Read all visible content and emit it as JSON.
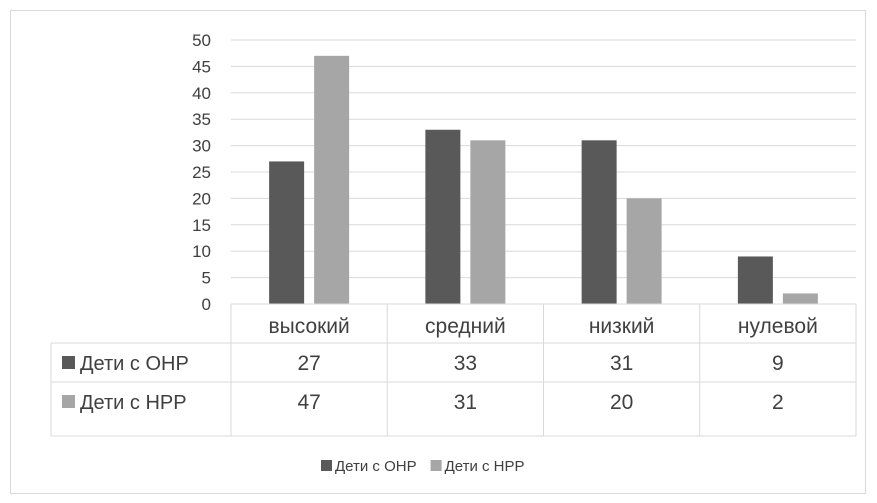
{
  "chart_data": {
    "type": "bar",
    "categories": [
      "высокий",
      "средний",
      "низкий",
      "нулевой"
    ],
    "series": [
      {
        "name": "Дети с ОНР",
        "values": [
          27,
          33,
          31,
          9
        ],
        "color": "#595959"
      },
      {
        "name": "Дети с НРР",
        "values": [
          47,
          31,
          20,
          2
        ],
        "color": "#a6a6a6"
      }
    ],
    "ylim": [
      0,
      50
    ],
    "yticks": [
      "0",
      "5",
      "10",
      "15",
      "20",
      "25",
      "30",
      "35",
      "40",
      "45",
      "50"
    ],
    "grid": true,
    "data_table": true,
    "legend": "bottom"
  }
}
